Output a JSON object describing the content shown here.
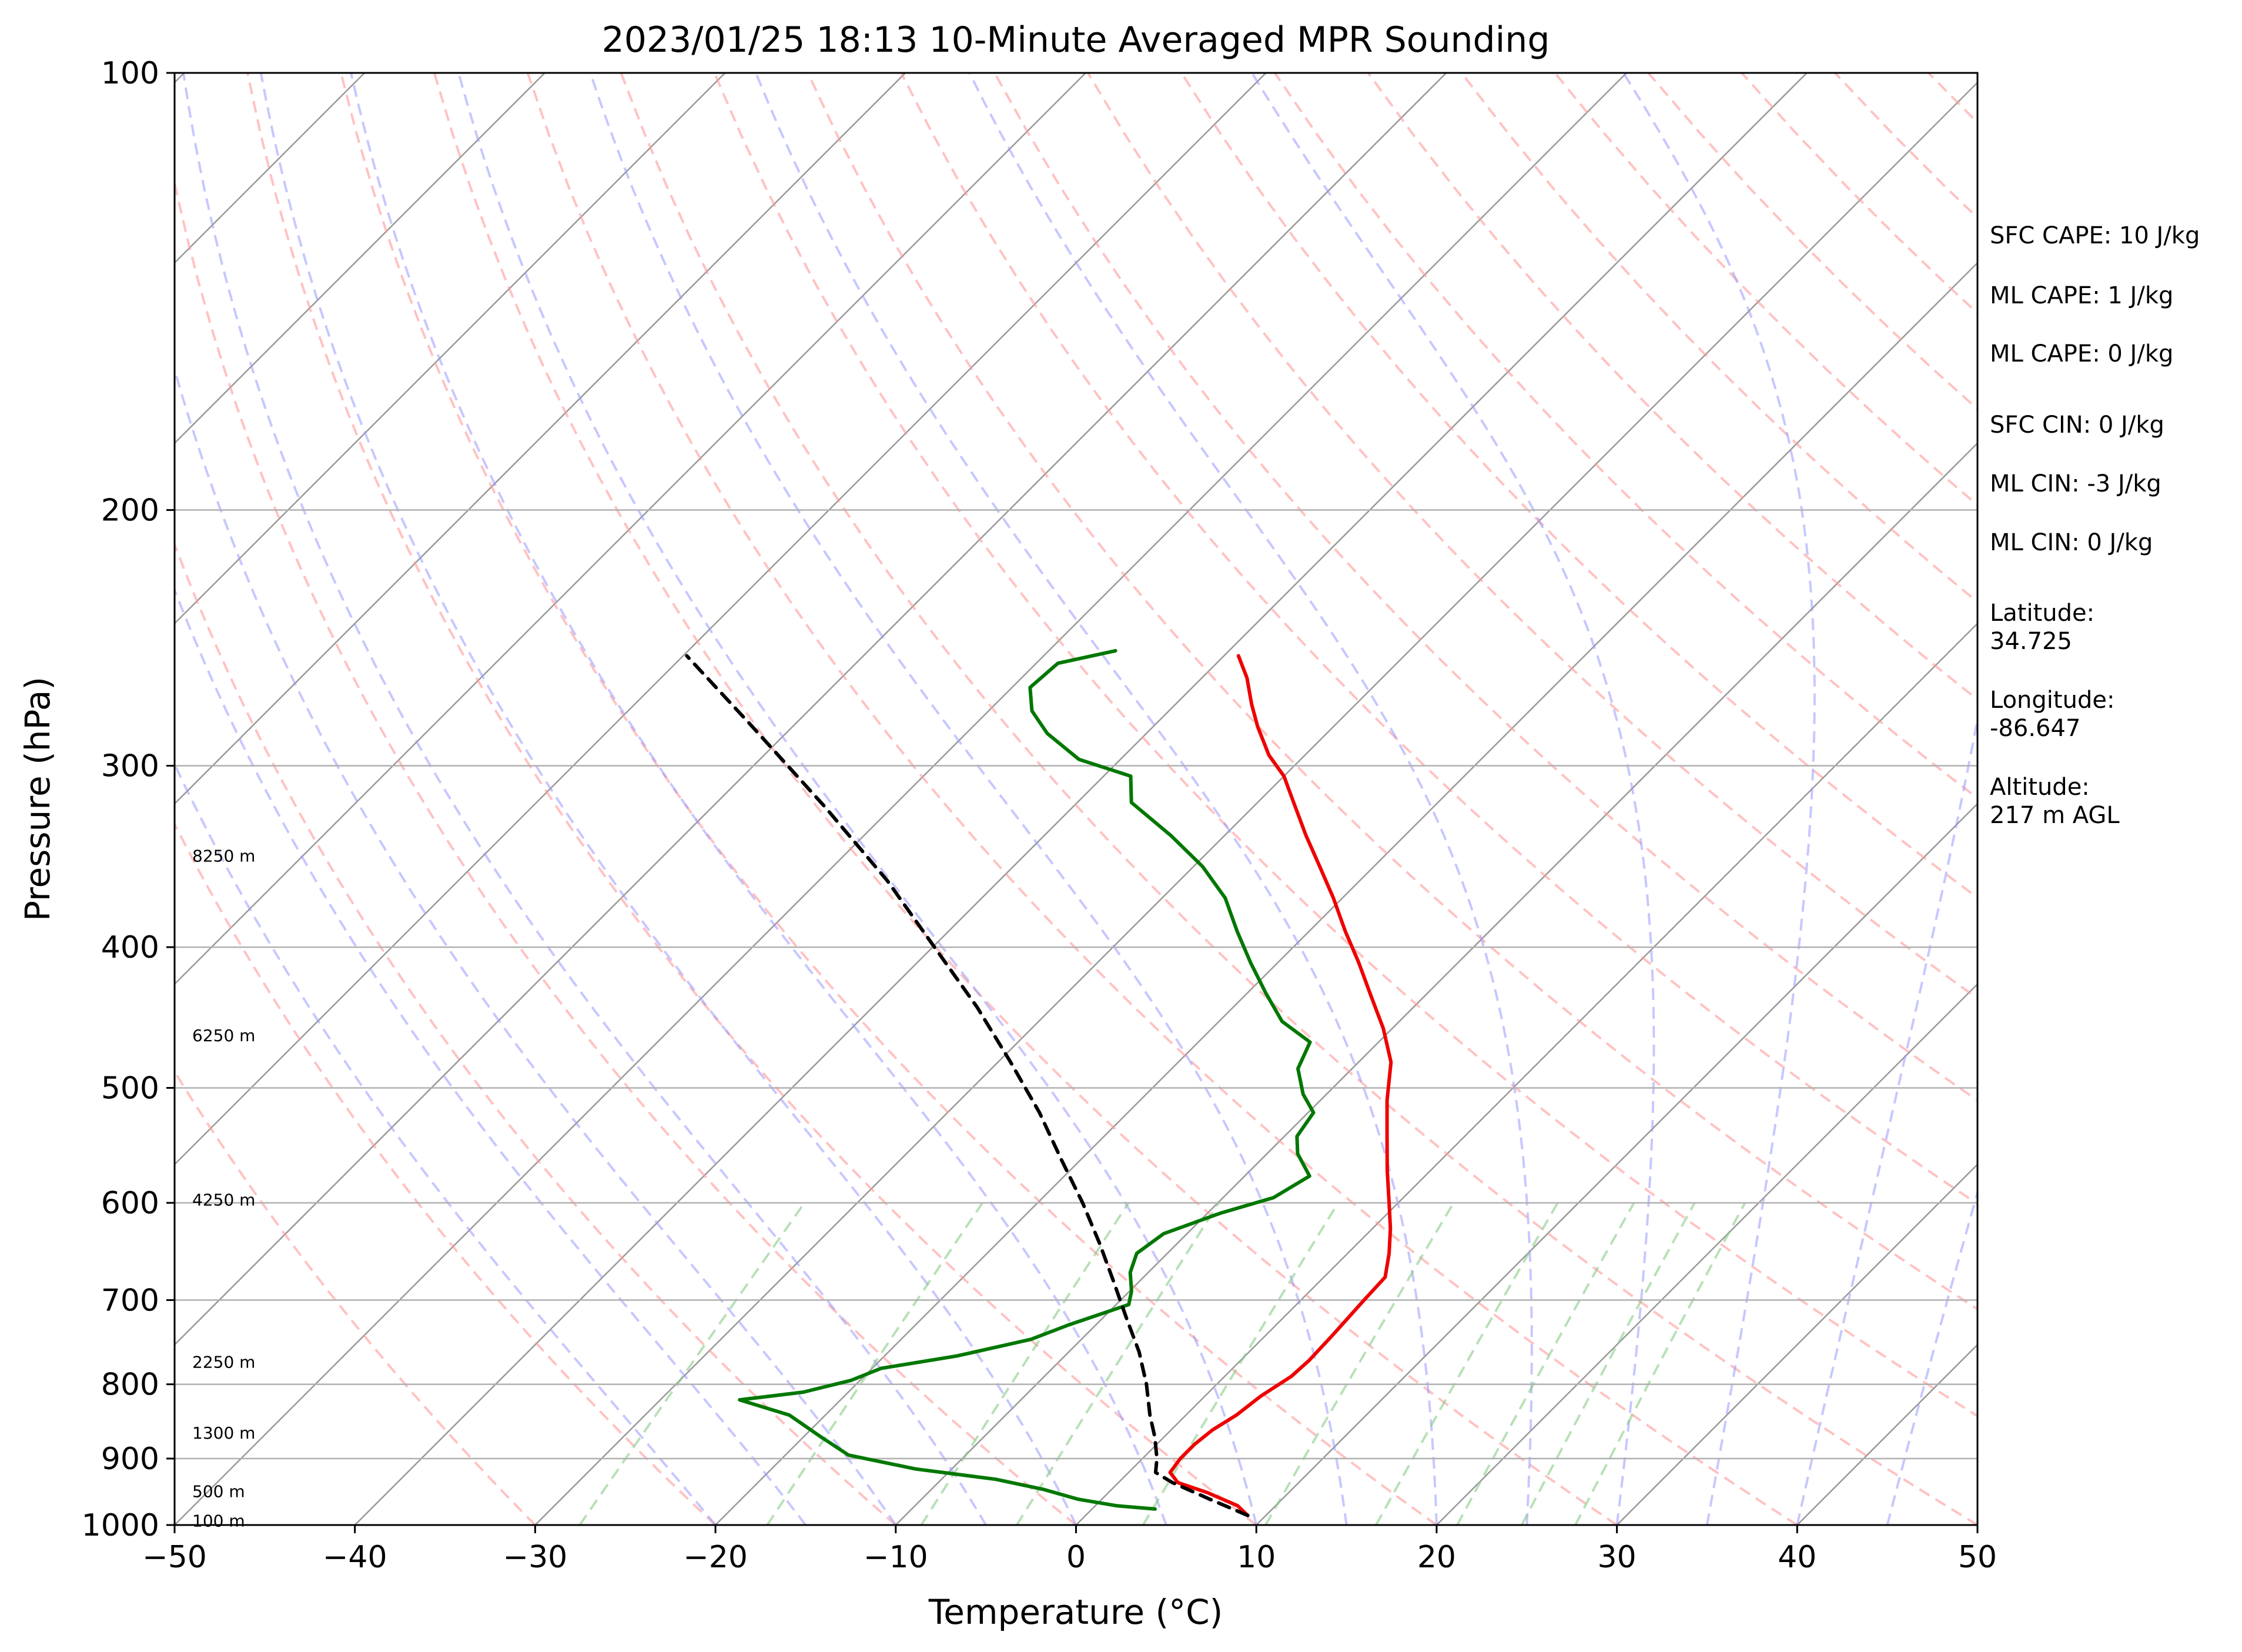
{
  "chart_data": {
    "type": "line",
    "title": "2023/01/25 18:13 10-Minute Averaged MPR Sounding",
    "xlabel": "Temperature (°C)",
    "ylabel": "Pressure (hPa)",
    "xlim": [
      -50,
      50
    ],
    "ylim": [
      1000,
      100
    ],
    "y_scale": "log",
    "x_ticks": [
      "−50",
      "−40",
      "−30",
      "−20",
      "−10",
      "0",
      "10",
      "20",
      "30",
      "40",
      "50"
    ],
    "y_ticks": [
      "100",
      "200",
      "300",
      "400",
      "500",
      "600",
      "700",
      "800",
      "900",
      "1000"
    ],
    "grid": true,
    "skew": "skew-T log-P",
    "colors": {
      "temperature": "#ee0000",
      "dewpoint": "#007700",
      "parcel": "#000000",
      "dry_adiabats": "#ff9999",
      "moist_adiabats": "#9999ff",
      "mixing_ratio": "#88cc88",
      "isotherms": "#999999"
    },
    "series": [
      {
        "key": "temperature",
        "points": [
          [
            9,
            985
          ],
          [
            7.9,
            970
          ],
          [
            5.5,
            950
          ],
          [
            3.3,
            935
          ],
          [
            2.3,
            920
          ],
          [
            2.1,
            900
          ],
          [
            2.1,
            880
          ],
          [
            2.3,
            860
          ],
          [
            2.8,
            840
          ],
          [
            3.1,
            815
          ],
          [
            3.7,
            790
          ],
          [
            3.8,
            770
          ],
          [
            3.7,
            740
          ],
          [
            3.5,
            700
          ],
          [
            3.4,
            675
          ],
          [
            2.3,
            650
          ],
          [
            1,
            625
          ],
          [
            -0.5,
            600
          ],
          [
            -2.4,
            570
          ],
          [
            -4.3,
            540
          ],
          [
            -6.3,
            510
          ],
          [
            -8.2,
            480
          ],
          [
            -10.5,
            455
          ],
          [
            -13,
            432
          ],
          [
            -15.5,
            410
          ],
          [
            -18,
            390
          ],
          [
            -20.5,
            370
          ],
          [
            -23,
            352
          ],
          [
            -25.5,
            335
          ],
          [
            -28,
            318
          ],
          [
            -30,
            305
          ],
          [
            -32,
            295
          ],
          [
            -34.2,
            282
          ],
          [
            -35.8,
            272
          ],
          [
            -37.5,
            261
          ],
          [
            -39.2,
            252
          ]
        ]
      },
      {
        "key": "dewpoint",
        "points": [
          [
            3.5,
            975
          ],
          [
            1.2,
            970
          ],
          [
            -1.3,
            960
          ],
          [
            -3.8,
            945
          ],
          [
            -7,
            930
          ],
          [
            -12,
            915
          ],
          [
            -16.5,
            895
          ],
          [
            -19,
            870
          ],
          [
            -22,
            840
          ],
          [
            -25.6,
            820
          ],
          [
            -22.5,
            810
          ],
          [
            -20.5,
            795
          ],
          [
            -19.5,
            780
          ],
          [
            -16,
            765
          ],
          [
            -12.8,
            745
          ],
          [
            -11.5,
            728
          ],
          [
            -9.3,
            705
          ],
          [
            -9.9,
            690
          ],
          [
            -11,
            670
          ],
          [
            -11.7,
            650
          ],
          [
            -11.3,
            630
          ],
          [
            -9.3,
            610
          ],
          [
            -7.2,
            595
          ],
          [
            -6.4,
            575
          ],
          [
            -8.3,
            555
          ],
          [
            -9.3,
            540
          ],
          [
            -9.7,
            520
          ],
          [
            -11.3,
            505
          ],
          [
            -13,
            485
          ],
          [
            -13.8,
            465
          ],
          [
            -16.5,
            450
          ],
          [
            -19,
            430
          ],
          [
            -21.5,
            410
          ],
          [
            -24,
            390
          ],
          [
            -26.5,
            370
          ],
          [
            -29.5,
            352
          ],
          [
            -33,
            335
          ],
          [
            -37,
            318
          ],
          [
            -38.5,
            305
          ],
          [
            -42.3,
            297
          ],
          [
            -45.5,
            285
          ],
          [
            -47.6,
            275
          ],
          [
            -49,
            265
          ],
          [
            -48.8,
            255
          ],
          [
            -46.3,
            250
          ]
        ]
      },
      {
        "key": "parcel",
        "points": [
          [
            9,
            985
          ],
          [
            6,
            960
          ],
          [
            3,
            935
          ],
          [
            1.5,
            920
          ],
          [
            0.8,
            900
          ],
          [
            -0.5,
            870
          ],
          [
            -2,
            840
          ],
          [
            -3.9,
            800
          ],
          [
            -6.1,
            760
          ],
          [
            -8.7,
            720
          ],
          [
            -11.4,
            680
          ],
          [
            -14.3,
            640
          ],
          [
            -17.5,
            600
          ],
          [
            -21.1,
            560
          ],
          [
            -24.9,
            520
          ],
          [
            -29.3,
            480
          ],
          [
            -34.2,
            440
          ],
          [
            -39.9,
            400
          ],
          [
            -46.2,
            360
          ],
          [
            -53.8,
            320
          ],
          [
            -62.7,
            280
          ],
          [
            -69.8,
            252
          ]
        ]
      }
    ],
    "height_labels": [
      {
        "text": "100 m",
        "p": 993
      },
      {
        "text": "500 m",
        "p": 948
      },
      {
        "text": "1300 m",
        "p": 864
      },
      {
        "text": "2250 m",
        "p": 772
      },
      {
        "text": "4250 m",
        "p": 597
      },
      {
        "text": "6250 m",
        "p": 460
      },
      {
        "text": "8250 m",
        "p": 346
      }
    ],
    "annotations": {
      "sfc_cape": "SFC CAPE: 10 J/kg",
      "ml_cape_1": "ML CAPE: 1 J/kg",
      "ml_cape_2": "ML CAPE: 0 J/kg",
      "sfc_cin": "SFC CIN: 0 J/kg",
      "ml_cin_1": "ML CIN: -3 J/kg",
      "ml_cin_2": "ML CIN: 0 J/kg",
      "latitude_label": "Latitude:",
      "latitude_value": "34.725",
      "longitude_label": "Longitude:",
      "longitude_value": "-86.647",
      "altitude_label": "Altitude:",
      "altitude_value": "217 m AGL"
    }
  }
}
